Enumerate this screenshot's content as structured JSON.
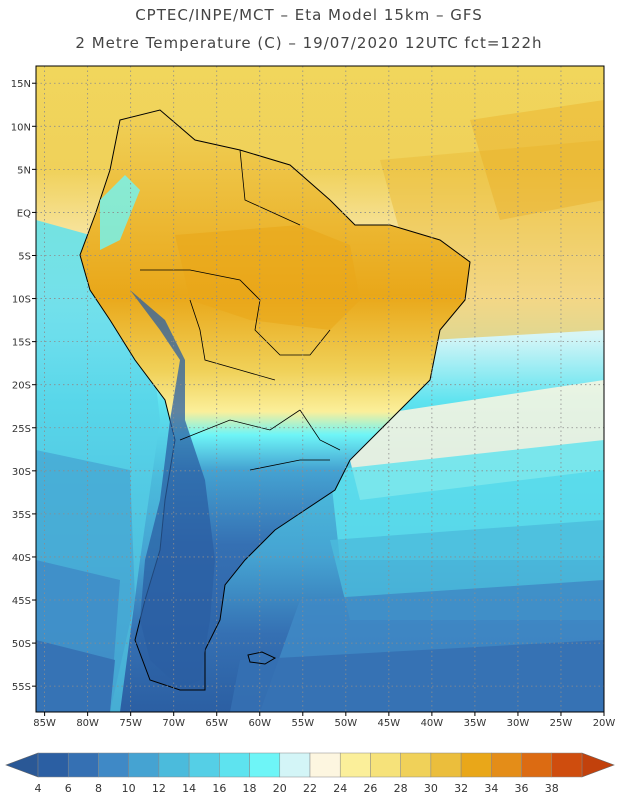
{
  "header": {
    "line1": "CPTEC/INPE/MCT –  Eta Model 15km – GFS",
    "line2": "2 Metre Temperature (C) – 19/07/2020 12UTC fct=122h"
  },
  "map": {
    "lat_labels": [
      "15N",
      "10N",
      "5N",
      "EQ",
      "5S",
      "10S",
      "15S",
      "20S",
      "25S",
      "30S",
      "35S",
      "40S",
      "45S",
      "50S",
      "55S"
    ],
    "lat_values": [
      15,
      10,
      5,
      0,
      -5,
      -10,
      -15,
      -20,
      -25,
      -30,
      -35,
      -40,
      -45,
      -50,
      -55
    ],
    "lon_labels": [
      "85W",
      "80W",
      "75W",
      "70W",
      "65W",
      "60W",
      "55W",
      "50W",
      "45W",
      "40W",
      "35W",
      "30W",
      "25W",
      "20W"
    ],
    "lon_values": [
      -85,
      -80,
      -75,
      -70,
      -65,
      -60,
      -55,
      -50,
      -45,
      -40,
      -35,
      -30,
      -25,
      -20
    ]
  },
  "colorbar": {
    "labels": [
      "4",
      "6",
      "8",
      "10",
      "12",
      "14",
      "16",
      "18",
      "20",
      "22",
      "24",
      "26",
      "28",
      "30",
      "32",
      "34",
      "36",
      "38"
    ],
    "colors": [
      "#2b5fa3",
      "#3570b3",
      "#3f89c6",
      "#45a3d2",
      "#4bbbdc",
      "#55cfe6",
      "#5ee3ef",
      "#6ef5f7",
      "#d3f5f7",
      "#fdf6e0",
      "#fbef9a",
      "#f6e27a",
      "#f0d159",
      "#ebbe3c",
      "#e9a719",
      "#e48d18",
      "#dc6b12",
      "#cf4d0e"
    ],
    "under_color": "#2a5896",
    "over_color": "#c2410c"
  }
}
